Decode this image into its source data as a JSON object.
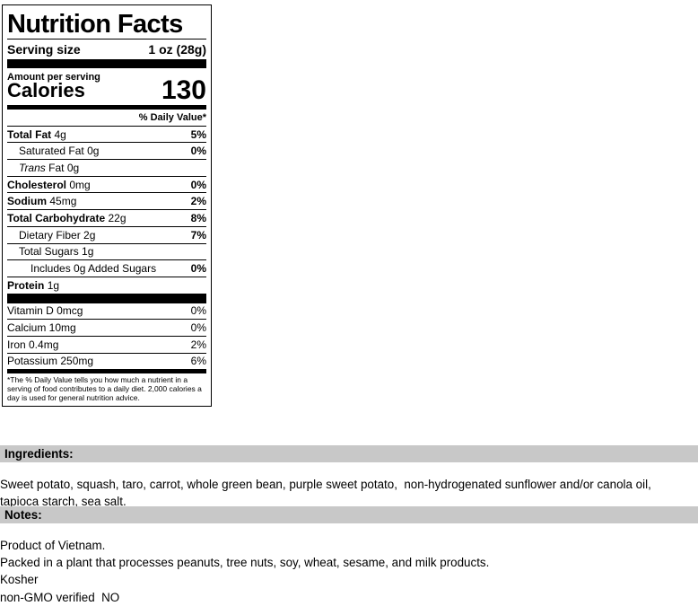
{
  "label": {
    "title": "Nutrition Facts",
    "serving_size_label": "Serving size",
    "serving_size": "1 oz (28g)",
    "amount_per_serving": "Amount per serving",
    "calories_label": "Calories",
    "calories": 130,
    "daily_value_header": "% Daily Value*",
    "nutrients": [
      {
        "name": "Total Fat",
        "amount": "4g",
        "dv": "5%"
      },
      {
        "name": "Saturated Fat",
        "amount": "0g",
        "dv": "0%"
      },
      {
        "name_italic": "Trans",
        "name": "Fat",
        "amount": "0g"
      },
      {
        "name": "Cholesterol",
        "amount": "0mg",
        "dv": "0%"
      },
      {
        "name": "Sodium",
        "amount": "45mg",
        "dv": "2%"
      },
      {
        "name": "Total Carbohydrate",
        "amount": "22g",
        "dv": "8%"
      },
      {
        "name": "Dietary Fiber",
        "amount": "2g",
        "dv": "7%"
      },
      {
        "name": "Total Sugars",
        "amount": "1g"
      },
      {
        "name": "Includes 0g Added Sugars",
        "dv": "0%"
      },
      {
        "name": "Protein",
        "amount": "1g"
      }
    ],
    "vitamins": [
      {
        "name": "Vitamin D 0mcg",
        "dv": "0%"
      },
      {
        "name": "Calcium 10mg",
        "dv": "0%"
      },
      {
        "name": "Iron 0.4mg",
        "dv": "2%"
      },
      {
        "name": "Potassium 250mg",
        "dv": "6%"
      }
    ],
    "footnote": "*The % Daily Value tells you how much a nutrient in a serving of food contributes to a daily diet. 2,000 calories a day is used for general nutrition advice."
  },
  "ingredients": {
    "heading": "Ingredients:",
    "lines": [
      "Sweet potato, squash, taro, carrot, whole green bean, purple sweet potato,  non-hydrogenated sunflower and/or canola oil,",
      "tapioca starch, sea salt."
    ]
  },
  "notes": {
    "heading": "Notes:",
    "lines": [
      "Product of Vietnam.",
      "Packed in a plant that processes peanuts, tree nuts, soy, wheat, sesame, and milk products.",
      "Kosher",
      "non-GMO verified  NO"
    ]
  }
}
